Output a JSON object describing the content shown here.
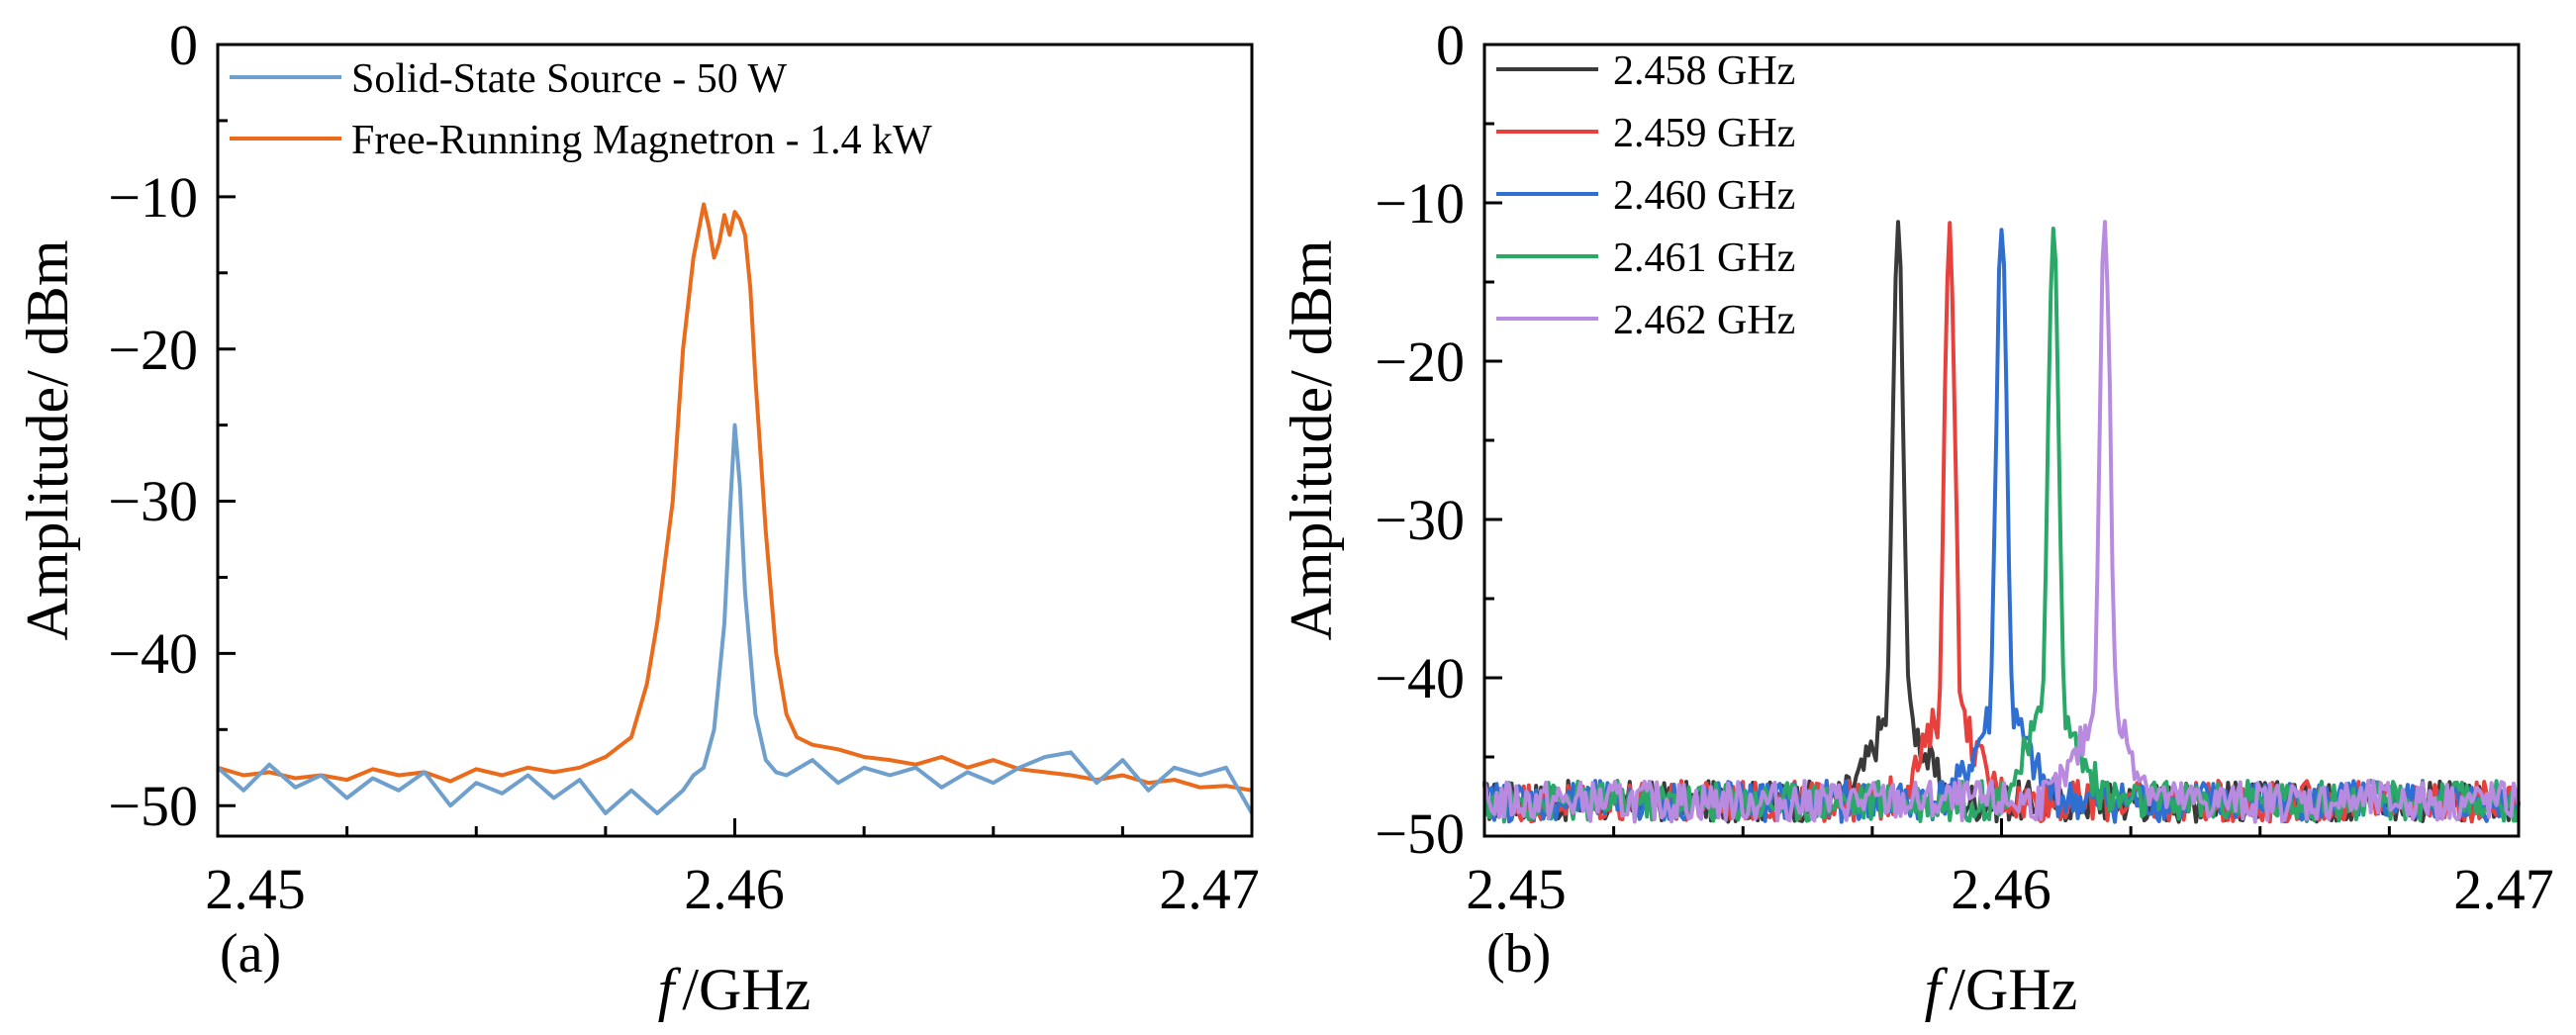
{
  "chart_data": [
    {
      "type": "line",
      "panel_label": "(a)",
      "xlabel_italic": "f",
      "xlabel_unit": "/GHz",
      "ylabel": "Amplitude/ dBm",
      "xlim": [
        2.45,
        2.47
      ],
      "ylim": [
        -52,
        0
      ],
      "xticks": [
        "2.45",
        "2.46",
        "2.47"
      ],
      "xtick_values": [
        2.45,
        2.46,
        2.47
      ],
      "yticks": [
        "0",
        "−10",
        "−20",
        "−30",
        "−40",
        "−50"
      ],
      "ytick_values": [
        0,
        -10,
        -20,
        -30,
        -40,
        -50
      ],
      "legend_position": "top-left",
      "series": [
        {
          "name": "Solid-State Source - 50 W",
          "color": "#6f9fcc",
          "x": [
            2.45,
            2.4505,
            2.451,
            2.4515,
            2.452,
            2.4525,
            2.453,
            2.4535,
            2.454,
            2.4545,
            2.455,
            2.4555,
            2.456,
            2.4565,
            2.457,
            2.4575,
            2.458,
            2.4585,
            2.459,
            2.4592,
            2.4594,
            2.4596,
            2.4598,
            2.4599,
            2.46,
            2.4601,
            2.4602,
            2.4604,
            2.4606,
            2.4608,
            2.461,
            2.4615,
            2.462,
            2.4625,
            2.463,
            2.4635,
            2.464,
            2.4645,
            2.465,
            2.4655,
            2.466,
            2.4665,
            2.467,
            2.4675,
            2.468,
            2.4685,
            2.469,
            2.4695,
            2.47
          ],
          "y": [
            -47.5,
            -49.0,
            -47.3,
            -48.8,
            -48.0,
            -49.5,
            -48.2,
            -49.0,
            -47.8,
            -50.0,
            -48.5,
            -49.2,
            -48.0,
            -49.5,
            -48.3,
            -50.5,
            -49.0,
            -50.5,
            -49.0,
            -48.0,
            -47.5,
            -45.0,
            -38.0,
            -31.0,
            -25.0,
            -29.0,
            -36.0,
            -44.0,
            -47.0,
            -47.8,
            -48.0,
            -47.0,
            -48.5,
            -47.5,
            -48.0,
            -47.5,
            -48.8,
            -47.8,
            -48.5,
            -47.5,
            -46.8,
            -46.5,
            -48.5,
            -47.0,
            -49.0,
            -47.5,
            -48.0,
            -47.5,
            -50.5
          ]
        },
        {
          "name": "Free-Running Magnetron - 1.4 kW",
          "color": "#ea6b1c",
          "x": [
            2.45,
            2.4505,
            2.451,
            2.4515,
            2.452,
            2.4525,
            2.453,
            2.4535,
            2.454,
            2.4545,
            2.455,
            2.4555,
            2.456,
            2.4565,
            2.457,
            2.4575,
            2.458,
            2.4583,
            2.4585,
            2.4588,
            2.459,
            2.4592,
            2.4594,
            2.4595,
            2.4596,
            2.4597,
            2.4598,
            2.4599,
            2.46,
            2.4601,
            2.4602,
            2.4603,
            2.4604,
            2.4606,
            2.4608,
            2.461,
            2.4612,
            2.4615,
            2.462,
            2.4625,
            2.463,
            2.4635,
            2.464,
            2.4645,
            2.465,
            2.4655,
            2.466,
            2.4665,
            2.467,
            2.4675,
            2.468,
            2.4685,
            2.469,
            2.4695,
            2.47
          ],
          "y": [
            -47.5,
            -48.0,
            -47.8,
            -48.2,
            -48.0,
            -48.3,
            -47.6,
            -48.0,
            -47.8,
            -48.4,
            -47.6,
            -48.0,
            -47.5,
            -47.8,
            -47.5,
            -46.8,
            -45.5,
            -42.0,
            -38.0,
            -30.0,
            -20.0,
            -14.0,
            -10.5,
            -12.0,
            -14.0,
            -13.0,
            -11.2,
            -12.5,
            -11.0,
            -11.5,
            -12.5,
            -16.0,
            -22.0,
            -32.0,
            -40.0,
            -44.0,
            -45.5,
            -46.0,
            -46.3,
            -46.8,
            -47.0,
            -47.3,
            -46.8,
            -47.5,
            -47.0,
            -47.6,
            -47.8,
            -48.0,
            -48.3,
            -48.0,
            -48.5,
            -48.3,
            -48.8,
            -48.7,
            -49.0
          ]
        }
      ]
    },
    {
      "type": "line",
      "panel_label": "(b)",
      "xlabel_italic": "f",
      "xlabel_unit": "/GHz",
      "ylabel": "Amplitude/ dBm",
      "xlim": [
        2.45,
        2.47
      ],
      "ylim": [
        -50,
        0
      ],
      "xticks": [
        "2.45",
        "2.46",
        "2.47"
      ],
      "xtick_values": [
        2.45,
        2.46,
        2.47
      ],
      "yticks": [
        "0",
        "−10",
        "−20",
        "−30",
        "−40",
        "−50"
      ],
      "ytick_values": [
        0,
        -10,
        -20,
        -30,
        -40,
        -50
      ],
      "legend_position": "top-left",
      "peak_level": -11.2,
      "noise_floor": -47.8,
      "series": [
        {
          "name": "2.458 GHz",
          "color": "#3a3a3a",
          "peak": 2.458
        },
        {
          "name": "2.459 GHz",
          "color": "#e8403c",
          "peak": 2.459
        },
        {
          "name": "2.460 GHz",
          "color": "#2f6fd1",
          "peak": 2.46
        },
        {
          "name": "2.461 GHz",
          "color": "#2aa868",
          "peak": 2.461
        },
        {
          "name": "2.462 GHz",
          "color": "#b98be0",
          "peak": 2.462
        }
      ]
    }
  ]
}
